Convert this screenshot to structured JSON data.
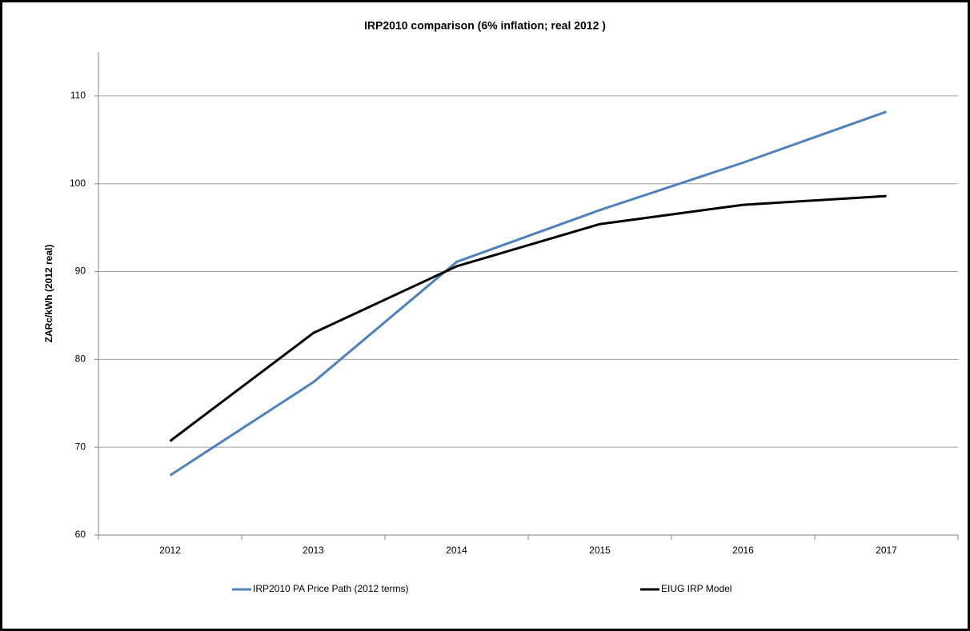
{
  "chart_data": {
    "type": "line",
    "title": "IRP2010 comparison  (6% inflation; real 2012 )",
    "y_label": "ZARc/kWh (2012 real)",
    "categories": [
      "2012",
      "2013",
      "2014",
      "2015",
      "2016",
      "2017"
    ],
    "series": [
      {
        "name": "IRP2010 PA Price Path (2012 terms)",
        "color": "#4f81bd",
        "values": [
          66.8,
          77.4,
          91.1,
          97.0,
          102.4,
          108.2
        ]
      },
      {
        "name": "EIUG IRP Model",
        "color": "#000000",
        "values": [
          70.7,
          83.0,
          90.6,
          95.4,
          97.6,
          98.6
        ]
      }
    ],
    "ylim": [
      60,
      115
    ],
    "yticks": [
      60,
      70,
      80,
      90,
      100,
      110
    ],
    "grid": true
  }
}
